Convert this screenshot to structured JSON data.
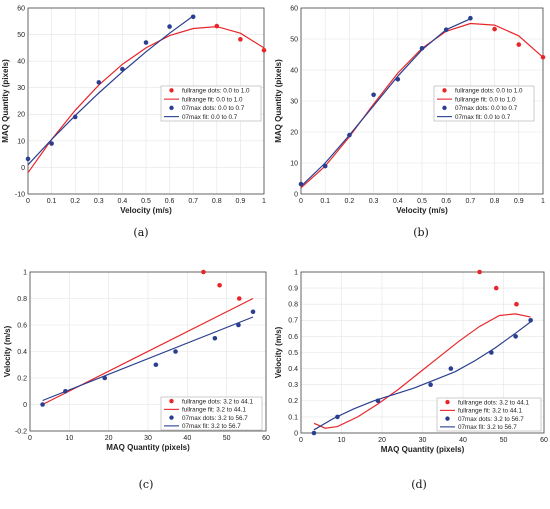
{
  "colors": {
    "fullrange": "#e8262a",
    "max07": "#2a3f8f"
  },
  "chart_data": [
    {
      "type": "scatter",
      "caption": "(a)",
      "xlabel": "Velocity (m/s)",
      "ylabel": "MAQ Quantity (pixels)",
      "xlim": [
        0,
        1
      ],
      "ylim": [
        -10,
        60
      ],
      "xticks": [
        "0",
        "0.1",
        "0.2",
        "0.3",
        "0.4",
        "0.5",
        "0.6",
        "0.7",
        "0.8",
        "0.9",
        "1"
      ],
      "yticks": [
        "-10",
        "0",
        "10",
        "20",
        "30",
        "40",
        "50",
        "60"
      ],
      "legend_position": "center-right",
      "series": [
        {
          "name": "fullrange dots: 0.0 to 1.0",
          "kind": "dots",
          "color_key": "fullrange",
          "x": [
            0.8,
            0.9,
            1.0
          ],
          "y": [
            53.2,
            48.2,
            44.1
          ]
        },
        {
          "name": "fullrange fit: 0.0 to 1.0",
          "kind": "curve",
          "color_key": "fullrange",
          "x": [
            0.0,
            0.1,
            0.2,
            0.3,
            0.4,
            0.5,
            0.6,
            0.7,
            0.8,
            0.9,
            1.0
          ],
          "y": [
            -2.0,
            10.5,
            21.5,
            31.0,
            38.8,
            45.0,
            49.6,
            52.3,
            53.0,
            50.5,
            45.0
          ]
        },
        {
          "name": "07max dots: 0.0 to 0.7",
          "kind": "dots",
          "color_key": "max07",
          "x": [
            0.0,
            0.1,
            0.2,
            0.3,
            0.4,
            0.5,
            0.6,
            0.7
          ],
          "y": [
            3.2,
            9.0,
            19.0,
            32.0,
            37.0,
            47.0,
            53.0,
            56.7
          ]
        },
        {
          "name": "07max fit: 0.0 to 0.7",
          "kind": "curve",
          "color_key": "max07",
          "x": [
            0.0,
            0.1,
            0.2,
            0.3,
            0.4,
            0.5,
            0.6,
            0.7
          ],
          "y": [
            1.0,
            10.5,
            19.5,
            28.0,
            36.0,
            43.5,
            50.5,
            57.0
          ]
        }
      ]
    },
    {
      "type": "scatter",
      "caption": "(b)",
      "xlabel": "Velocity (m/s)",
      "ylabel": "MAQ Quantity (pixels)",
      "xlim": [
        0,
        1
      ],
      "ylim": [
        0,
        60
      ],
      "xticks": [
        "0",
        "0.1",
        "0.2",
        "0.3",
        "0.4",
        "0.5",
        "0.6",
        "0.7",
        "0.8",
        "0.9",
        "1"
      ],
      "yticks": [
        "0",
        "10",
        "20",
        "30",
        "40",
        "50",
        "60"
      ],
      "legend_position": "center-right",
      "series": [
        {
          "name": "fullrange dots: 0.0 to 1.0",
          "kind": "dots",
          "color_key": "fullrange",
          "x": [
            0.8,
            0.9,
            1.0
          ],
          "y": [
            53.2,
            48.2,
            44.1
          ]
        },
        {
          "name": "fullrange fit: 0.0 to 1.0",
          "kind": "curve",
          "color_key": "fullrange",
          "x": [
            0.0,
            0.1,
            0.2,
            0.3,
            0.4,
            0.5,
            0.6,
            0.7,
            0.8,
            0.9,
            1.0
          ],
          "y": [
            2.0,
            9.0,
            18.5,
            29.0,
            39.0,
            47.0,
            52.5,
            55.0,
            54.5,
            51.0,
            44.1
          ]
        },
        {
          "name": "07max dots: 0.0 to 0.7",
          "kind": "dots",
          "color_key": "max07",
          "x": [
            0.0,
            0.1,
            0.2,
            0.3,
            0.4,
            0.5,
            0.6,
            0.7
          ],
          "y": [
            3.2,
            9.0,
            19.0,
            32.0,
            37.0,
            47.0,
            53.0,
            56.7
          ]
        },
        {
          "name": "07max fit: 0.0 to 0.7",
          "kind": "curve",
          "color_key": "max07",
          "x": [
            0.0,
            0.1,
            0.2,
            0.3,
            0.4,
            0.5,
            0.6,
            0.7
          ],
          "y": [
            2.5,
            10.0,
            19.0,
            28.5,
            38.0,
            46.5,
            53.0,
            56.5
          ]
        }
      ]
    },
    {
      "type": "scatter",
      "caption": "(c)",
      "xlabel": "MAQ Quantity (pixels)",
      "ylabel": "Velocity (m/s)",
      "xlim": [
        0,
        60
      ],
      "ylim": [
        -0.2,
        1
      ],
      "xticks": [
        "0",
        "10",
        "20",
        "30",
        "40",
        "50",
        "60"
      ],
      "yticks": [
        "-0.2",
        "0",
        "0.2",
        "0.4",
        "0.6",
        "0.8",
        "1"
      ],
      "legend_position": "bottom-right",
      "series": [
        {
          "name": "fullrange dots: 3.2 to 44.1",
          "kind": "dots",
          "color_key": "fullrange",
          "x": [
            44.1,
            48.2,
            53.2
          ],
          "y": [
            1.0,
            0.9,
            0.8
          ]
        },
        {
          "name": "fullrange fit: 3.2 to 44.1",
          "kind": "curve",
          "color_key": "fullrange",
          "x": [
            3.2,
            56.7
          ],
          "y": [
            0.0,
            0.8
          ]
        },
        {
          "name": "07max dots: 3.2 to 56.7",
          "kind": "dots",
          "color_key": "max07",
          "x": [
            3.2,
            9.0,
            19.0,
            32.0,
            37.0,
            47.0,
            53.0,
            56.7
          ],
          "y": [
            0.0,
            0.1,
            0.2,
            0.3,
            0.4,
            0.5,
            0.6,
            0.7
          ]
        },
        {
          "name": "07max fit: 3.2 to 56.7",
          "kind": "curve",
          "color_key": "max07",
          "x": [
            3.2,
            56.7
          ],
          "y": [
            0.03,
            0.66
          ]
        }
      ]
    },
    {
      "type": "scatter",
      "caption": "(d)",
      "xlabel": "MAQ Quantity (pixels)",
      "ylabel": "Velocity (m/s)",
      "xlim": [
        0,
        60
      ],
      "ylim": [
        0,
        1
      ],
      "xticks": [
        "0",
        "10",
        "20",
        "30",
        "40",
        "50",
        "60"
      ],
      "yticks": [
        "0",
        "0.1",
        "0.2",
        "0.3",
        "0.4",
        "0.5",
        "0.6",
        "0.7",
        "0.8",
        "0.9",
        "1"
      ],
      "legend_position": "bottom-right",
      "series": [
        {
          "name": "fullrange dots: 3.2 to 44.1",
          "kind": "dots",
          "color_key": "fullrange",
          "x": [
            44.1,
            48.2,
            53.2
          ],
          "y": [
            1.0,
            0.9,
            0.8
          ]
        },
        {
          "name": "fullrange fit: 3.2 to 44.1",
          "kind": "curve",
          "color_key": "fullrange",
          "x": [
            3.2,
            6,
            9,
            14,
            19,
            24,
            29,
            34,
            39,
            44,
            49,
            53,
            56.7
          ],
          "y": [
            0.06,
            0.03,
            0.04,
            0.1,
            0.18,
            0.27,
            0.37,
            0.47,
            0.57,
            0.66,
            0.73,
            0.74,
            0.72
          ]
        },
        {
          "name": "07max dots: 3.2 to 56.7",
          "kind": "dots",
          "color_key": "max07",
          "x": [
            3.2,
            9.0,
            19.0,
            32.0,
            37.0,
            47.0,
            53.0,
            56.7
          ],
          "y": [
            0.0,
            0.1,
            0.2,
            0.3,
            0.4,
            0.5,
            0.6,
            0.7
          ]
        },
        {
          "name": "07max fit: 3.2 to 56.7",
          "kind": "curve",
          "color_key": "max07",
          "x": [
            3.2,
            8,
            13,
            18,
            23,
            28,
            33,
            38,
            43,
            48,
            53,
            56.7
          ],
          "y": [
            0.02,
            0.09,
            0.15,
            0.2,
            0.24,
            0.28,
            0.33,
            0.38,
            0.45,
            0.53,
            0.62,
            0.69
          ]
        }
      ]
    }
  ]
}
